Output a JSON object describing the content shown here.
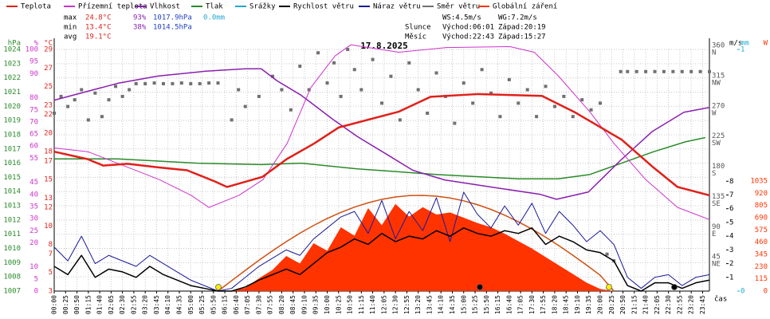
{
  "chart_data": {
    "type": "line",
    "title": "17.8.2025",
    "x_label": "čas",
    "stats": {
      "labels": [
        "max",
        "min",
        "avg"
      ],
      "rows": [
        [
          "24.8°C",
          "93%",
          "1017.9hPa",
          "0.0mm"
        ],
        [
          "13.4°C",
          "38%",
          "1014.5hPa"
        ],
        [
          "19.1°C"
        ]
      ]
    },
    "wind_stats": [
      "WS:4.5m/s",
      "WG:7.2m/s"
    ],
    "sun": {
      "label": "Slunce",
      "rise": "Východ:06:01",
      "set": "Západ:20:19"
    },
    "moon": {
      "label": "Měsíc",
      "rise": "Východ:22:43",
      "set": "Západ:15:27"
    },
    "grid": true,
    "xlim": [
      0,
      1440
    ],
    "xticks": [
      {
        "value": 0,
        "label": "00:00"
      },
      {
        "value": 25,
        "label": "00:25"
      },
      {
        "value": 50,
        "label": "00:50"
      },
      {
        "value": 75,
        "label": "01:15"
      },
      {
        "value": 100,
        "label": "01:40"
      },
      {
        "value": 125,
        "label": "02:05"
      },
      {
        "value": 150,
        "label": "02:30"
      },
      {
        "value": 175,
        "label": "02:55"
      },
      {
        "value": 200,
        "label": "03:20"
      },
      {
        "value": 225,
        "label": "03:45"
      },
      {
        "value": 250,
        "label": "04:10"
      },
      {
        "value": 275,
        "label": "04:35"
      },
      {
        "value": 300,
        "label": "05:00"
      },
      {
        "value": 325,
        "label": "05:25"
      },
      {
        "value": 350,
        "label": "05:50"
      },
      {
        "value": 375,
        "label": "06:15"
      },
      {
        "value": 400,
        "label": "06:40"
      },
      {
        "value": 425,
        "label": "07:05"
      },
      {
        "value": 450,
        "label": "07:30"
      },
      {
        "value": 475,
        "label": "07:55"
      },
      {
        "value": 500,
        "label": "08:20"
      },
      {
        "value": 525,
        "label": "08:45"
      },
      {
        "value": 550,
        "label": "09:10"
      },
      {
        "value": 575,
        "label": "09:35"
      },
      {
        "value": 600,
        "label": "10:00"
      },
      {
        "value": 625,
        "label": "10:25"
      },
      {
        "value": 650,
        "label": "10:50"
      },
      {
        "value": 675,
        "label": "11:15"
      },
      {
        "value": 700,
        "label": "11:40"
      },
      {
        "value": 725,
        "label": "12:05"
      },
      {
        "value": 750,
        "label": "12:30"
      },
      {
        "value": 775,
        "label": "12:55"
      },
      {
        "value": 800,
        "label": "13:20"
      },
      {
        "value": 825,
        "label": "13:45"
      },
      {
        "value": 850,
        "label": "14:10"
      },
      {
        "value": 875,
        "label": "14:35"
      },
      {
        "value": 900,
        "label": "15:00"
      },
      {
        "value": 925,
        "label": "15:25"
      },
      {
        "value": 950,
        "label": "15:50"
      },
      {
        "value": 975,
        "label": "16:15"
      },
      {
        "value": 1000,
        "label": "16:40"
      },
      {
        "value": 1025,
        "label": "17:05"
      },
      {
        "value": 1050,
        "label": "17:30"
      },
      {
        "value": 1075,
        "label": "17:55"
      },
      {
        "value": 1100,
        "label": "18:20"
      },
      {
        "value": 1125,
        "label": "18:45"
      },
      {
        "value": 1150,
        "label": "19:10"
      },
      {
        "value": 1175,
        "label": "19:35"
      },
      {
        "value": 1200,
        "label": "20:00"
      },
      {
        "value": 1225,
        "label": "20:25"
      },
      {
        "value": 1250,
        "label": "20:50"
      },
      {
        "value": 1275,
        "label": "21:15"
      },
      {
        "value": 1300,
        "label": "21:40"
      },
      {
        "value": 1325,
        "label": "22:05"
      },
      {
        "value": 1350,
        "label": "22:30"
      },
      {
        "value": 1375,
        "label": "22:55"
      },
      {
        "value": 1400,
        "label": "23:20"
      },
      {
        "value": 1425,
        "label": "23:45"
      }
    ],
    "axes": [
      {
        "label": "hPa",
        "color": "#2a8a2a",
        "lim": [
          1007,
          1024
        ],
        "ticks": [
          1007,
          1008,
          1009,
          1010,
          1011,
          1012,
          1013,
          1014,
          1015,
          1016,
          1017,
          1018,
          1019,
          1020,
          1021,
          1022,
          1023,
          1024
        ]
      },
      {
        "label": "%",
        "color": "#cc33cc",
        "lim": [
          0,
          100
        ],
        "ticks": [
          0,
          5,
          10,
          20,
          25,
          30,
          35,
          40,
          45,
          55,
          60,
          65,
          70,
          75,
          80,
          90,
          95,
          100
        ]
      },
      {
        "label": "°C",
        "color": "#e0201a",
        "lim": [
          3,
          29
        ],
        "ticks": [
          3,
          5,
          7,
          8,
          10,
          12,
          13,
          15,
          17,
          18,
          20,
          22,
          23,
          25,
          27,
          29
        ]
      },
      {
        "color": "#555555",
        "lim": [
          0,
          360
        ],
        "ticks": [
          45,
          90,
          135,
          180,
          225,
          270,
          315,
          360
        ],
        "tick_names": [
          "NE",
          "E",
          "SE",
          "S",
          "SW",
          "W",
          "NW",
          "N"
        ]
      },
      {
        "label": "m/s",
        "color": "#000000",
        "lim": [
          0,
          17.6
        ],
        "ticks": [
          1,
          2,
          3,
          4,
          5,
          6,
          7,
          8
        ]
      },
      {
        "label": "mm",
        "color": "#20a8d0",
        "lim": [
          0,
          1
        ],
        "ticks": [
          0,
          1
        ]
      },
      {
        "label": "W",
        "color": "#ff3300",
        "lim": [
          0,
          2273
        ],
        "ticks": [
          0,
          115,
          230,
          345,
          460,
          575,
          690,
          805,
          920,
          1035
        ]
      }
    ],
    "x": [
      0,
      30,
      60,
      90,
      120,
      150,
      180,
      210,
      240,
      270,
      300,
      330,
      360,
      390,
      420,
      450,
      480,
      510,
      540,
      570,
      600,
      630,
      660,
      690,
      720,
      750,
      780,
      810,
      840,
      870,
      900,
      930,
      960,
      990,
      1020,
      1050,
      1080,
      1110,
      1140,
      1170,
      1200,
      1230,
      1260,
      1290,
      1320,
      1350,
      1380,
      1410,
      1440
    ],
    "series": [
      {
        "name": "Teplota",
        "color": "#e0201a",
        "axis": 2,
        "width": 2.5,
        "x": [
          0,
          73,
          108,
          161,
          231,
          292,
          353,
          380,
          423,
          458,
          511,
          572,
          625,
          757,
          827,
          932,
          1072,
          1142,
          1247,
          1317,
          1370,
          1440
        ],
        "values": [
          18.0,
          17.2,
          16.5,
          16.7,
          16.3,
          16.0,
          14.8,
          14.2,
          14.8,
          15.3,
          17.2,
          18.9,
          20.6,
          22.3,
          23.9,
          24.2,
          24.0,
          22.3,
          19.3,
          16.3,
          14.2,
          13.3
        ]
      },
      {
        "name": "Přízemní teplota",
        "color": "#cc33cc",
        "axis": 2,
        "width": 1,
        "x": [
          0,
          74,
          231,
          301,
          340,
          406,
          459,
          512,
          564,
          617,
          652,
          757,
          862,
          1002,
          1055,
          1107,
          1177,
          1230,
          1300,
          1370,
          1440
        ],
        "values": [
          18.4,
          18.0,
          15.0,
          13.3,
          12.0,
          13.3,
          15.0,
          18.9,
          24.9,
          28.3,
          29.5,
          28.7,
          29.2,
          29.3,
          28.7,
          26.2,
          22.3,
          18.9,
          15.0,
          12.0,
          10.7
        ]
      },
      {
        "name": "Vlhkost",
        "color": "#8a1fb0",
        "axis": 1,
        "width": 1.5,
        "x": [
          0,
          140,
          228,
          333,
          420,
          455,
          490,
          543,
          613,
          666,
          736,
          788,
          858,
          963,
          1069,
          1104,
          1174,
          1244,
          1314,
          1384,
          1440
        ],
        "values": [
          79,
          86,
          89,
          91,
          92,
          92,
          87,
          81,
          71,
          64,
          56,
          50,
          46,
          43,
          40,
          38,
          41,
          54,
          66,
          74,
          76
        ]
      },
      {
        "name": "Tlak",
        "color": "#2a8a2a",
        "axis": 0,
        "width": 1.5,
        "x": [
          0,
          140,
          315,
          455,
          543,
          666,
          841,
          1020,
          1107,
          1177,
          1247,
          1317,
          1387,
          1431
        ],
        "values": [
          1016.3,
          1016.3,
          1016.0,
          1015.9,
          1016.0,
          1015.6,
          1015.2,
          1014.9,
          1014.9,
          1015.2,
          1016.0,
          1016.8,
          1017.5,
          1017.8
        ]
      },
      {
        "name": "Srážky",
        "color": "#20a8d0",
        "axis": 5
      },
      {
        "name": "Rychlost větru",
        "color": "#000000",
        "axis": 4,
        "width": 1.5,
        "values": [
          1.8,
          1.2,
          2.6,
          1.0,
          1.6,
          1.4,
          1.0,
          1.8,
          1.2,
          0.8,
          0.4,
          0.2,
          0.0,
          0.0,
          0.3,
          0.8,
          1.2,
          1.6,
          1.2,
          2.0,
          2.8,
          3.2,
          3.8,
          3.4,
          4.2,
          3.6,
          4.0,
          3.8,
          4.4,
          4.0,
          4.6,
          4.2,
          4.0,
          4.4,
          4.2,
          4.6,
          3.4,
          4.0,
          3.6,
          3.0,
          2.8,
          2.2,
          0.4,
          0.0,
          0.6,
          0.6,
          0.2,
          0.6,
          0.8
        ]
      },
      {
        "name": "Náraz větru",
        "color": "#1a1a9a",
        "axis": 4,
        "width": 1,
        "values": [
          3.2,
          2.2,
          4.0,
          2.0,
          2.6,
          2.2,
          1.8,
          2.6,
          2.0,
          1.4,
          0.8,
          0.4,
          0.0,
          0.2,
          1.0,
          1.8,
          2.4,
          3.0,
          2.6,
          3.8,
          4.6,
          5.4,
          5.8,
          4.2,
          6.6,
          3.8,
          5.8,
          4.4,
          6.8,
          3.6,
          7.2,
          5.6,
          4.6,
          6.2,
          4.8,
          6.4,
          4.2,
          5.8,
          4.8,
          3.6,
          4.4,
          3.4,
          1.0,
          0.2,
          1.0,
          1.2,
          0.4,
          1.0,
          1.2
        ]
      },
      {
        "name": "Směr větru",
        "color": "#707070",
        "axis": 3,
        "kind": "scatter",
        "x": [
          0,
          15,
          30,
          45,
          60,
          75,
          90,
          105,
          120,
          135,
          150,
          165,
          180,
          200,
          220,
          240,
          260,
          280,
          300,
          320,
          340,
          360,
          390,
          405,
          420,
          450,
          480,
          500,
          520,
          540,
          560,
          580,
          600,
          615,
          630,
          645,
          660,
          675,
          700,
          720,
          740,
          760,
          780,
          800,
          820,
          840,
          860,
          880,
          900,
          920,
          940,
          960,
          980,
          1000,
          1020,
          1040,
          1060,
          1080,
          1100,
          1120,
          1140,
          1160,
          1180,
          1200,
          1215,
          1230,
          1245,
          1260,
          1280,
          1300,
          1320,
          1340,
          1360,
          1380,
          1400,
          1420,
          1440
        ],
        "values": [
          265,
          290,
          275,
          285,
          300,
          255,
          295,
          260,
          285,
          305,
          290,
          300,
          309,
          309,
          310,
          309,
          309,
          310,
          309,
          309,
          310,
          310,
          255,
          300,
          275,
          290,
          320,
          300,
          270,
          335,
          300,
          355,
          310,
          340,
          290,
          360,
          330,
          300,
          345,
          280,
          320,
          255,
          340,
          300,
          265,
          325,
          290,
          250,
          310,
          280,
          330,
          295,
          260,
          315,
          280,
          300,
          260,
          305,
          275,
          290,
          260,
          285,
          270,
          280,
          55,
          45,
          327,
          327,
          327,
          327,
          327,
          327,
          327,
          327,
          327,
          327,
          327
        ]
      },
      {
        "name": "Globální záření",
        "color": "#ff3300",
        "axis": 6,
        "kind": "area",
        "max_color": "#d05010",
        "x": [
          360,
          390,
          420,
          450,
          480,
          510,
          540,
          570,
          600,
          630,
          660,
          690,
          720,
          750,
          780,
          810,
          840,
          870,
          900,
          930,
          960,
          990,
          1020,
          1050,
          1080,
          1110,
          1140,
          1170,
          1200,
          1230
        ],
        "values": [
          0,
          5,
          30,
          120,
          200,
          330,
          260,
          450,
          380,
          600,
          520,
          780,
          620,
          820,
          700,
          790,
          720,
          740,
          690,
          640,
          600,
          540,
          470,
          400,
          320,
          240,
          160,
          80,
          20,
          0
        ],
        "max_values": [
          0,
          98,
          195,
          290,
          380,
          465,
          545,
          617,
          683,
          740,
          790,
          831,
          863,
          885,
          898,
          900,
          893,
          876,
          849,
          813,
          768,
          714,
          652,
          583,
          507,
          425,
          337,
          245,
          149,
          0
        ]
      }
    ]
  }
}
